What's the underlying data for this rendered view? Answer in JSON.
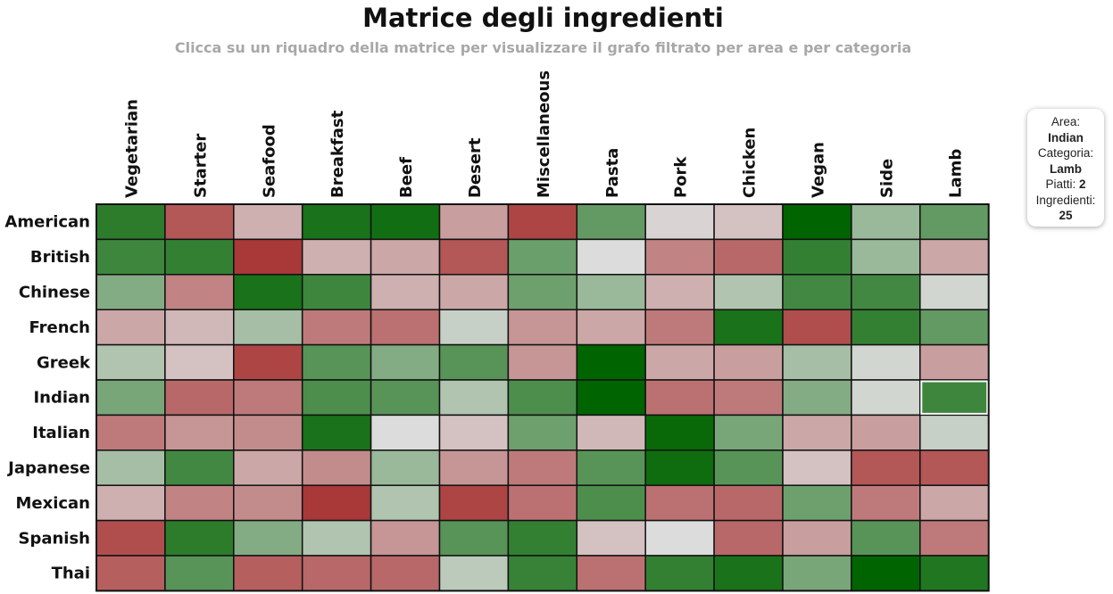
{
  "header": {
    "title": "Matrice degli ingredienti",
    "subtitle": "Clicca su un riquadro della matrice per visualizzare il grafo filtrato per area e per categoria"
  },
  "tooltip": {
    "area_label": "Area:",
    "area_value": "Indian",
    "category_label": "Categoria:",
    "category_value": "Lamb",
    "dishes_label": "Piatti:",
    "dishes_value": "2",
    "ingredients_label": "Ingredienti:",
    "ingredients_value": "25"
  },
  "colors": {
    "high": "#006400",
    "mid": "#dcdcdc",
    "low": "#a52a2a",
    "grid_stroke": "#111111",
    "highlight_stroke": "#ffffff"
  },
  "chart_data": {
    "type": "heatmap",
    "title": "Matrice degli ingredienti",
    "columns": [
      "Vegetarian",
      "Starter",
      "Seafood",
      "Breakfast",
      "Beef",
      "Desert",
      "Miscellaneous",
      "Pasta",
      "Pork",
      "Chicken",
      "Vegan",
      "Side",
      "Lamb"
    ],
    "rows": [
      "American",
      "British",
      "Chinese",
      "French",
      "Greek",
      "Indian",
      "Italian",
      "Japanese",
      "Mexican",
      "Spanish",
      "Thai"
    ],
    "value_scale": "diverging: negative = red, 0 = light gray, positive = green",
    "values": [
      [
        0.8,
        -0.75,
        -0.25,
        0.88,
        0.92,
        -0.35,
        -0.85,
        0.55,
        -0.05,
        -0.15,
        1.0,
        0.3,
        0.55
      ],
      [
        0.72,
        0.77,
        -0.92,
        -0.25,
        -0.3,
        -0.75,
        0.52,
        0.0,
        -0.5,
        -0.65,
        0.77,
        0.3,
        -0.3
      ],
      [
        0.4,
        -0.5,
        0.88,
        0.72,
        -0.25,
        -0.3,
        0.5,
        0.3,
        -0.25,
        0.2,
        0.7,
        0.7,
        0.05
      ],
      [
        -0.3,
        -0.2,
        0.25,
        -0.55,
        -0.6,
        0.1,
        -0.4,
        -0.3,
        -0.55,
        0.88,
        -0.8,
        0.77,
        0.55
      ],
      [
        0.2,
        -0.15,
        -0.85,
        0.6,
        0.4,
        0.6,
        -0.4,
        1.0,
        -0.3,
        -0.35,
        0.25,
        0.05,
        -0.35
      ],
      [
        0.45,
        -0.65,
        -0.55,
        0.65,
        0.6,
        0.2,
        0.65,
        1.0,
        -0.6,
        -0.55,
        0.4,
        0.05,
        0.72
      ],
      [
        -0.55,
        -0.4,
        -0.45,
        0.88,
        0.0,
        -0.15,
        0.5,
        -0.2,
        0.96,
        0.45,
        -0.3,
        -0.35,
        0.1
      ],
      [
        0.25,
        0.7,
        -0.3,
        -0.45,
        0.3,
        -0.4,
        -0.55,
        0.6,
        0.93,
        0.6,
        -0.15,
        -0.75,
        -0.75
      ],
      [
        -0.25,
        -0.5,
        -0.45,
        -0.92,
        0.2,
        -0.85,
        -0.6,
        0.65,
        -0.6,
        -0.65,
        0.5,
        -0.55,
        -0.3
      ],
      [
        -0.8,
        0.8,
        0.4,
        0.2,
        -0.4,
        0.6,
        0.77,
        -0.15,
        0.0,
        -0.65,
        -0.35,
        0.6,
        -0.55
      ],
      [
        -0.7,
        0.6,
        -0.7,
        -0.65,
        -0.65,
        0.15,
        0.75,
        -0.6,
        0.77,
        0.88,
        0.45,
        1.0,
        0.85
      ]
    ],
    "selected": {
      "row": "Indian",
      "column": "Lamb"
    }
  }
}
